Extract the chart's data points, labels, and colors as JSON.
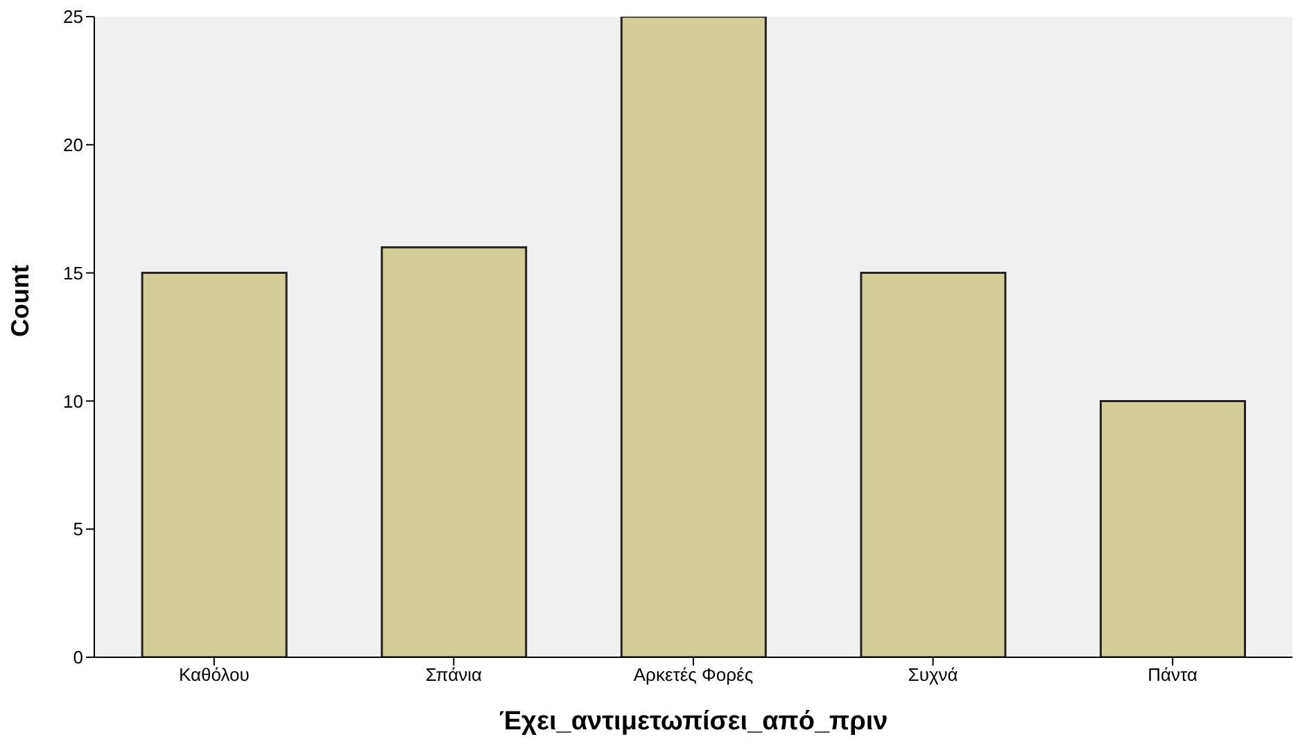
{
  "chart_data": {
    "type": "bar",
    "xlabel": "Έχει_αντιμετωπίσει_από_πριν",
    "ylabel": "Count",
    "categories": [
      "Καθόλου",
      "Σπάνια",
      "Αρκετές Φορές",
      "Συχνά",
      "Πάντα"
    ],
    "values": [
      15,
      16,
      25,
      15,
      10
    ],
    "color": "#d3ce97",
    "ylim": [
      0,
      25
    ],
    "yticks": [
      0,
      5,
      10,
      15,
      20,
      25
    ],
    "grid": false,
    "legend": false
  }
}
